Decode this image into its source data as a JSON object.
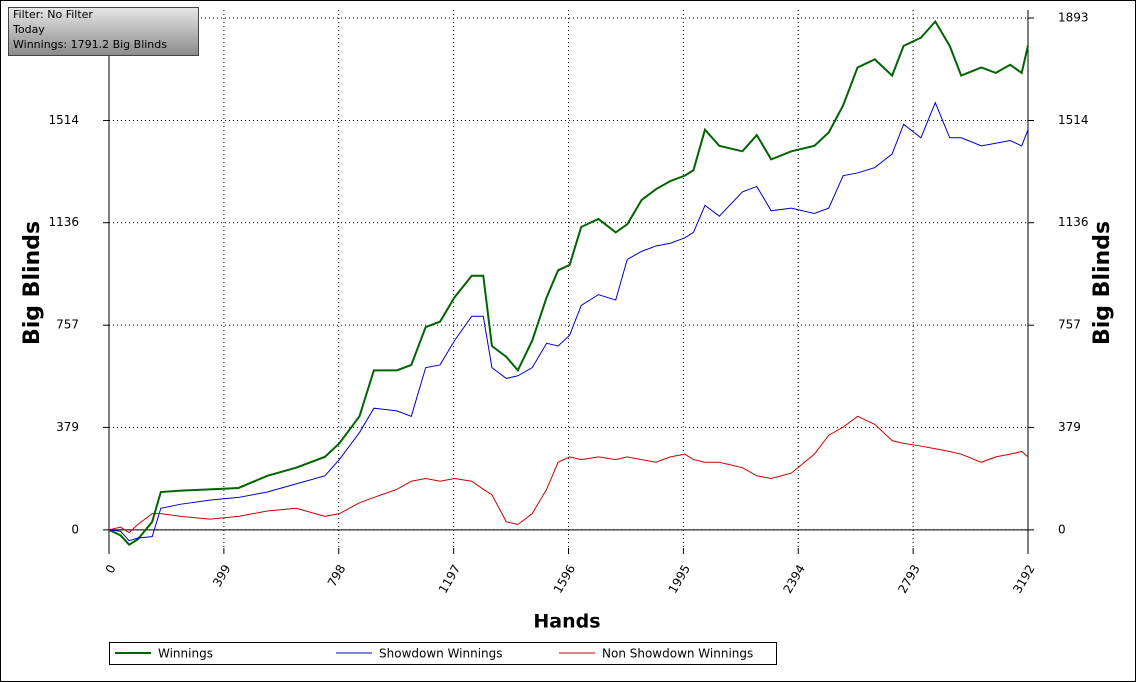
{
  "chart_data": {
    "type": "line",
    "annotations": [
      "Filter: No Filter",
      "Today",
      "Winnings: 1791.2 Big Blinds"
    ],
    "x_label": "Hands",
    "y_label": "Big Blinds",
    "xlim": [
      0,
      3192
    ],
    "xticks": [
      0,
      399,
      798,
      1197,
      1596,
      1995,
      2394,
      2793,
      3192
    ],
    "ylim": [
      -67,
      1893
    ],
    "yticks": [
      0,
      379,
      757,
      1136,
      1514,
      1893
    ],
    "grid": true,
    "legend": "bottom",
    "x": [
      0,
      40,
      70,
      100,
      150,
      180,
      250,
      350,
      450,
      550,
      650,
      750,
      800,
      870,
      920,
      1000,
      1050,
      1100,
      1150,
      1200,
      1260,
      1300,
      1330,
      1380,
      1420,
      1470,
      1520,
      1560,
      1600,
      1640,
      1700,
      1760,
      1800,
      1850,
      1900,
      1950,
      2000,
      2030,
      2070,
      2120,
      2200,
      2250,
      2300,
      2370,
      2450,
      2500,
      2550,
      2600,
      2660,
      2720,
      2760,
      2820,
      2870,
      2920,
      2960,
      3030,
      3080,
      3130,
      3170,
      3192
    ],
    "series": [
      {
        "name": "Winnings",
        "color": "#006400",
        "values": [
          0,
          -20,
          -55,
          -35,
          30,
          140,
          145,
          150,
          155,
          200,
          230,
          270,
          320,
          420,
          590,
          590,
          610,
          750,
          770,
          860,
          940,
          940,
          680,
          640,
          590,
          700,
          860,
          960,
          980,
          1120,
          1150,
          1100,
          1130,
          1220,
          1260,
          1290,
          1310,
          1330,
          1480,
          1420,
          1400,
          1460,
          1370,
          1400,
          1420,
          1470,
          1570,
          1710,
          1740,
          1680,
          1790,
          1820,
          1880,
          1790,
          1680,
          1710,
          1690,
          1720,
          1690,
          1791
        ]
      },
      {
        "name": "Showdown Winnings",
        "color": "#0000cc",
        "values": [
          0,
          -5,
          -40,
          -30,
          -25,
          80,
          95,
          110,
          120,
          140,
          170,
          200,
          260,
          360,
          450,
          440,
          420,
          600,
          610,
          700,
          790,
          790,
          600,
          560,
          570,
          600,
          690,
          680,
          720,
          830,
          870,
          850,
          1000,
          1030,
          1050,
          1060,
          1080,
          1100,
          1200,
          1160,
          1250,
          1270,
          1180,
          1190,
          1170,
          1190,
          1310,
          1320,
          1340,
          1390,
          1500,
          1450,
          1580,
          1450,
          1450,
          1420,
          1430,
          1440,
          1420,
          1480
        ]
      },
      {
        "name": "Non Showdown Winnings",
        "color": "#cc0000",
        "values": [
          0,
          10,
          -10,
          20,
          60,
          60,
          50,
          40,
          50,
          70,
          80,
          50,
          60,
          100,
          120,
          150,
          180,
          190,
          180,
          190,
          180,
          150,
          130,
          30,
          20,
          60,
          150,
          250,
          270,
          260,
          270,
          260,
          270,
          260,
          250,
          270,
          280,
          260,
          250,
          250,
          230,
          200,
          190,
          210,
          280,
          350,
          380,
          420,
          390,
          330,
          320,
          310,
          300,
          290,
          280,
          250,
          270,
          280,
          290,
          270
        ]
      }
    ]
  }
}
